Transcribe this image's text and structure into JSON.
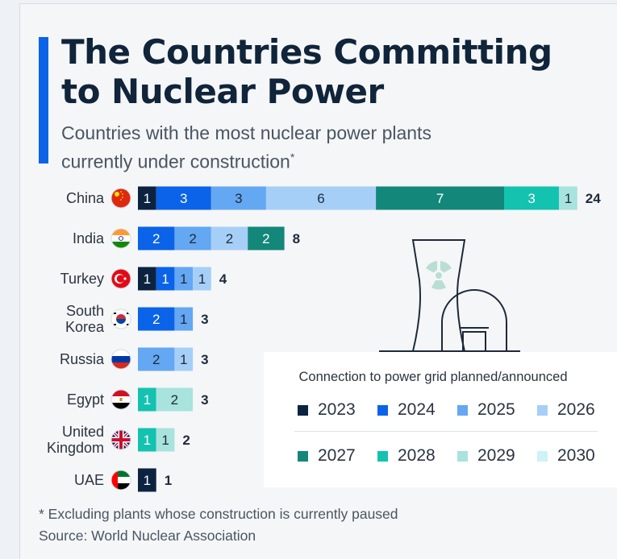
{
  "header": {
    "title_line1": "The Countries Committing",
    "title_line2": "to Nuclear Power",
    "subtitle_line1": "Countries with the most nuclear power plants",
    "subtitle_line2": "currently under construction",
    "subtitle_marker": "*"
  },
  "footer": {
    "footnote": "* Excluding plants whose construction is currently paused",
    "source": "Source: World Nuclear Association"
  },
  "legend": {
    "title": "Connection to power grid planned/announced",
    "items": [
      {
        "label": "2023",
        "color": "#0c2340"
      },
      {
        "label": "2024",
        "color": "#0a63e8"
      },
      {
        "label": "2025",
        "color": "#64a7f2"
      },
      {
        "label": "2026",
        "color": "#a6cff7"
      },
      {
        "label": "2027",
        "color": "#13877a"
      },
      {
        "label": "2028",
        "color": "#14c2b0"
      },
      {
        "label": "2029",
        "color": "#a8e3dd"
      },
      {
        "label": "2030",
        "color": "#cdf3f7"
      }
    ]
  },
  "colors": {
    "accent": "#0a63e8",
    "title": "#10243a",
    "text": "#2b3440",
    "illustration_stroke": "#1d2a3a",
    "radiation_symbol": "#b9ded3"
  },
  "chart_data": {
    "type": "bar",
    "orientation": "horizontal",
    "stacked": true,
    "categories": [
      "China",
      "India",
      "Turkey",
      "South Korea",
      "Russia",
      "Egypt",
      "United Kingdom",
      "UAE"
    ],
    "category_lines": [
      [
        "China"
      ],
      [
        "India"
      ],
      [
        "Turkey"
      ],
      [
        "South",
        "Korea"
      ],
      [
        "Russia"
      ],
      [
        "Egypt"
      ],
      [
        "United",
        "Kingdom"
      ],
      [
        "UAE"
      ]
    ],
    "flag_icons": [
      "china-flag-icon",
      "india-flag-icon",
      "turkey-flag-icon",
      "south-korea-flag-icon",
      "russia-flag-icon",
      "egypt-flag-icon",
      "united-kingdom-flag-icon",
      "uae-flag-icon"
    ],
    "series": [
      {
        "name": "2023",
        "values": [
          1,
          0,
          1,
          0,
          0,
          0,
          0,
          1
        ]
      },
      {
        "name": "2024",
        "values": [
          3,
          2,
          1,
          2,
          0,
          0,
          0,
          0
        ]
      },
      {
        "name": "2025",
        "values": [
          3,
          2,
          1,
          1,
          2,
          0,
          0,
          0
        ]
      },
      {
        "name": "2026",
        "values": [
          6,
          2,
          1,
          0,
          1,
          0,
          0,
          0
        ]
      },
      {
        "name": "2027",
        "values": [
          7,
          2,
          0,
          0,
          0,
          0,
          0,
          0
        ]
      },
      {
        "name": "2028",
        "values": [
          3,
          0,
          0,
          0,
          0,
          1,
          1,
          0
        ]
      },
      {
        "name": "2029",
        "values": [
          1,
          0,
          0,
          0,
          0,
          2,
          1,
          0
        ]
      },
      {
        "name": "2030",
        "values": [
          0,
          0,
          0,
          0,
          0,
          0,
          0,
          0
        ]
      }
    ],
    "totals": [
      24,
      8,
      4,
      3,
      3,
      3,
      2,
      1
    ],
    "xlim": [
      0,
      24
    ],
    "grid": false,
    "legend_position": "bottom-right"
  }
}
